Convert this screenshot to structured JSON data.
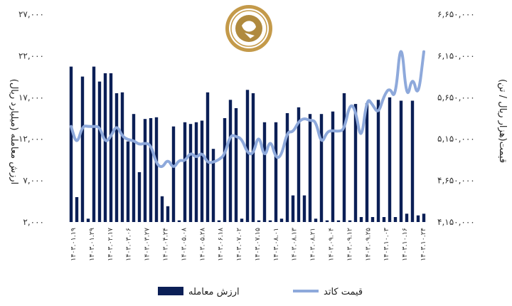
{
  "chart_data": {
    "type": "bar+line",
    "left_axis": {
      "label": "ارزش معامله (میلیارد ریال)",
      "ticks": [
        "۲,۰۰۰",
        "۷,۰۰۰",
        "۱۲,۰۰۰",
        "۱۷,۰۰۰",
        "۲۲,۰۰۰",
        "۲۷,۰۰۰"
      ],
      "ylim": [
        2000,
        27000
      ]
    },
    "right_axis": {
      "label": "قیمت(هزار ریال / تن)",
      "ticks": [
        "۴,۱۵۰,۰۰۰",
        "۴,۶۵۰,۰۰۰",
        "۵,۱۵۰,۰۰۰",
        "۵,۶۵۰,۰۰۰",
        "۶,۱۵۰,۰۰۰",
        "۶,۶۵۰,۰۰۰"
      ],
      "ylim": [
        4150000,
        6650000
      ]
    },
    "x_ticks": [
      "۱۴۰۳.۰۱.۱۹",
      "۱۴۰۳.۰۱.۲۹",
      "۱۴۰۳.۰۲.۱۷",
      "۱۴۰۳.۰۳.۰۶",
      "۱۴۰۳.۰۳.۲۷",
      "۱۴۰۳.۰۴.۲۴",
      "۱۴۰۳.۰۵.۰۸",
      "۱۴۰۳.۰۵.۲۸",
      "۱۴۰۳.۰۶.۱۸",
      "۱۴۰۳.۰۷.۰۲",
      "۱۴۰۳.۰۷.۱۵",
      "۱۴۰۳.۰۸.۰۱",
      "۱۴۰۳.۰۸.۱۳",
      "۱۴۰۳.۰۸.۲۱",
      "۱۴۰۳.۰۹.۰۴",
      "۱۴۰۳.۰۹.۱۲",
      "۱۴۰۳.۰۹.۲۵",
      "۱۴۰۳.۱۰.۰۳",
      "۱۴۰۳.۱۰.۱۶",
      "۱۴۰۳.۱۰.۲۴"
    ],
    "series": [
      {
        "name": "ارزش معامله",
        "type": "bar",
        "axis": "left",
        "color": "#0b1f56",
        "values": [
          20700,
          5000,
          19500,
          2400,
          20700,
          18900,
          19900,
          19900,
          17500,
          17600,
          11700,
          15000,
          8000,
          14400,
          14500,
          14600,
          5100,
          3900,
          13500,
          2200,
          14000,
          13800,
          14000,
          14200,
          17600,
          10800,
          2200,
          14500,
          16700,
          15700,
          2400,
          17900,
          17500,
          2200,
          14000,
          2200,
          14000,
          2400,
          15100,
          5200,
          15800,
          5200,
          15000,
          2400,
          15000,
          2200,
          15300,
          2200,
          17500,
          2200,
          16200,
          2600,
          16300,
          2600,
          16700,
          2600,
          17000,
          2600,
          16600,
          3000,
          16600,
          2800,
          3000
        ]
      },
      {
        "name": "قیمت کاتد",
        "type": "line",
        "axis": "right",
        "color": "#8ea9db",
        "values": [
          5300000,
          5070000,
          5310000,
          5300000,
          5300000,
          5300000,
          5100000,
          5180000,
          5320000,
          5180000,
          5140000,
          5130000,
          5080000,
          5100000,
          5080000,
          4850000,
          4800000,
          4910000,
          4790000,
          4900000,
          4880000,
          4990000,
          4920000,
          4990000,
          4860000,
          4870000,
          4900000,
          4960000,
          5200000,
          5180000,
          5150000,
          4980000,
          4960000,
          5220000,
          4900000,
          5160000,
          4910000,
          4950000,
          5240000,
          5230000,
          5360000,
          5400000,
          5370000,
          5370000,
          5080000,
          5240000,
          5250000,
          5240000,
          5260000,
          5580000,
          5500000,
          5100000,
          5650000,
          5560000,
          5450000,
          5670000,
          5770000,
          5620000,
          6400000,
          5590000,
          5920000,
          5630000,
          6200000
        ]
      }
    ],
    "legend": [
      "ارزش معامله",
      "قیمت کاتد"
    ],
    "legend_position": "bottom"
  }
}
